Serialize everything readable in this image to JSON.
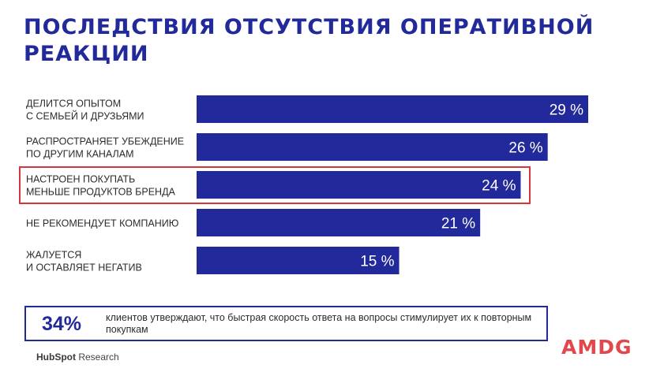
{
  "title": "Последствия отсутствия оперативной реакции",
  "chart_data": {
    "type": "bar",
    "orientation": "horizontal",
    "categories": [
      [
        "Делится опытом",
        "с семьей и друзьями"
      ],
      [
        "Распространяет убеждение",
        "по другим каналам"
      ],
      [
        "Настроен покупать",
        "меньше продуктов бренда"
      ],
      [
        "Не рекомендует компанию"
      ],
      [
        "Жалуется",
        "и оставляет негатив"
      ]
    ],
    "values": [
      29,
      26,
      24,
      21,
      15
    ],
    "value_labels": [
      "29 %",
      "26 %",
      "24 %",
      "21 %",
      "15 %"
    ],
    "highlighted_index": 2,
    "bar_color": "#22299a",
    "highlight_color": "#d8363d"
  },
  "callout": {
    "value": "34%",
    "text": "клиентов  утверждают, что быстрая скорость ответа на вопросы стимулирует их к повторным покупкам"
  },
  "source": {
    "brand": "HubSpot",
    "suffix": "Research"
  },
  "logo": "AMDG",
  "colors": {
    "accent": "#22299a",
    "brand_red": "#d8363d"
  }
}
